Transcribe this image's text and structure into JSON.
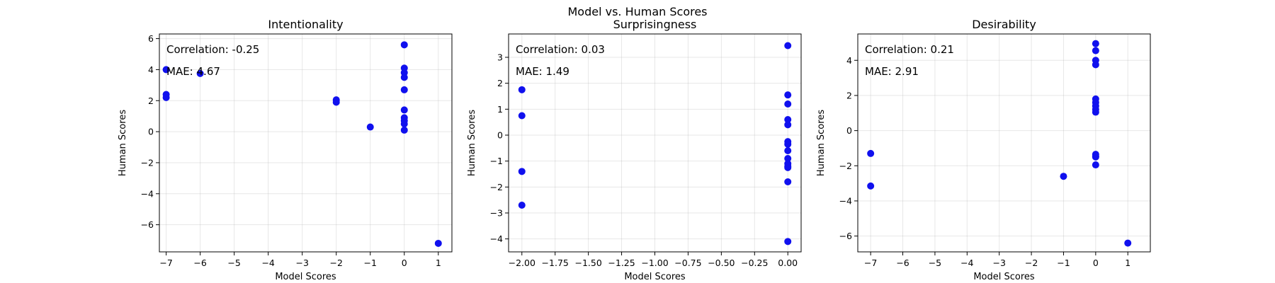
{
  "figure": {
    "suptitle": "Model vs. Human Scores"
  },
  "chart_data": [
    {
      "type": "scatter",
      "title": "Intentionality",
      "xlabel": "Model Scores",
      "ylabel": "Human Scores",
      "xlim": [
        -7.2,
        1.4
      ],
      "ylim": [
        -7.75,
        6.3
      ],
      "xticks": [
        -7,
        -6,
        -5,
        -4,
        -3,
        -2,
        -1,
        0,
        1
      ],
      "yticks": [
        -6,
        -4,
        -2,
        0,
        2,
        4,
        6
      ],
      "xtick_labels": [
        "−7",
        "−6",
        "−5",
        "−4",
        "−3",
        "−2",
        "−1",
        "0",
        "1"
      ],
      "ytick_labels": [
        "−6",
        "−4",
        "−2",
        "0",
        "2",
        "4",
        "6"
      ],
      "grid": true,
      "marker_color": "#1010ee",
      "annotations": [
        "Correlation: -0.25",
        "MAE: 4.67"
      ],
      "x": [
        -7,
        -7,
        -7,
        -6,
        -2,
        -2,
        -1,
        0,
        0,
        0,
        0,
        0,
        0,
        0,
        0,
        0,
        0,
        1
      ],
      "y": [
        4.0,
        2.4,
        2.2,
        3.75,
        2.05,
        1.9,
        0.3,
        5.6,
        4.1,
        3.8,
        3.5,
        2.7,
        1.4,
        0.9,
        0.7,
        0.5,
        0.1,
        -7.2
      ]
    },
    {
      "type": "scatter",
      "title": "Surprisingness",
      "xlabel": "Model Scores",
      "ylabel": "Human Scores",
      "xlim": [
        -2.1,
        0.1
      ],
      "ylim": [
        -4.5,
        3.9
      ],
      "xticks": [
        -2.0,
        -1.75,
        -1.5,
        -1.25,
        -1.0,
        -0.75,
        -0.5,
        -0.25,
        0.0
      ],
      "yticks": [
        -4,
        -3,
        -2,
        -1,
        0,
        1,
        2,
        3
      ],
      "xtick_labels": [
        "−2.00",
        "−1.75",
        "−1.50",
        "−1.25",
        "−1.00",
        "−0.75",
        "−0.50",
        "−0.25",
        "0.00"
      ],
      "ytick_labels": [
        "−4",
        "−3",
        "−2",
        "−1",
        "0",
        "1",
        "2",
        "3"
      ],
      "grid": true,
      "marker_color": "#1010ee",
      "annotations": [
        "Correlation: 0.03",
        "MAE: 1.49"
      ],
      "x": [
        -2,
        -2,
        -2,
        -2,
        0,
        0,
        0,
        0,
        0,
        0,
        0,
        0,
        0,
        0,
        0,
        0,
        0,
        0
      ],
      "y": [
        1.75,
        0.75,
        -1.4,
        -2.7,
        3.45,
        1.55,
        1.2,
        0.6,
        0.4,
        -0.25,
        -0.35,
        -0.6,
        -0.9,
        -1.1,
        -1.2,
        -1.25,
        -1.8,
        -4.1
      ]
    },
    {
      "type": "scatter",
      "title": "Desirability",
      "xlabel": "Model Scores",
      "ylabel": "Human Scores",
      "xlim": [
        -7.4,
        1.7
      ],
      "ylim": [
        -6.9,
        5.5
      ],
      "xticks": [
        -7,
        -6,
        -5,
        -4,
        -3,
        -2,
        -1,
        0,
        1
      ],
      "yticks": [
        -6,
        -4,
        -2,
        0,
        2,
        4
      ],
      "xtick_labels": [
        "−7",
        "−6",
        "−5",
        "−4",
        "−3",
        "−2",
        "−1",
        "0",
        "1"
      ],
      "ytick_labels": [
        "−6",
        "−4",
        "−2",
        "0",
        "2",
        "4"
      ],
      "grid": true,
      "marker_color": "#1010ee",
      "annotations": [
        "Correlation: 0.21",
        "MAE: 2.91"
      ],
      "x": [
        -7,
        -7,
        -1,
        0,
        0,
        0,
        0,
        0,
        0,
        0,
        0,
        0,
        0,
        0,
        0,
        0,
        1
      ],
      "y": [
        -1.3,
        -3.15,
        -2.6,
        4.95,
        4.55,
        4.0,
        3.75,
        1.8,
        1.6,
        1.4,
        1.2,
        1.05,
        -1.35,
        -1.45,
        -1.5,
        -1.95,
        -6.4
      ]
    }
  ]
}
